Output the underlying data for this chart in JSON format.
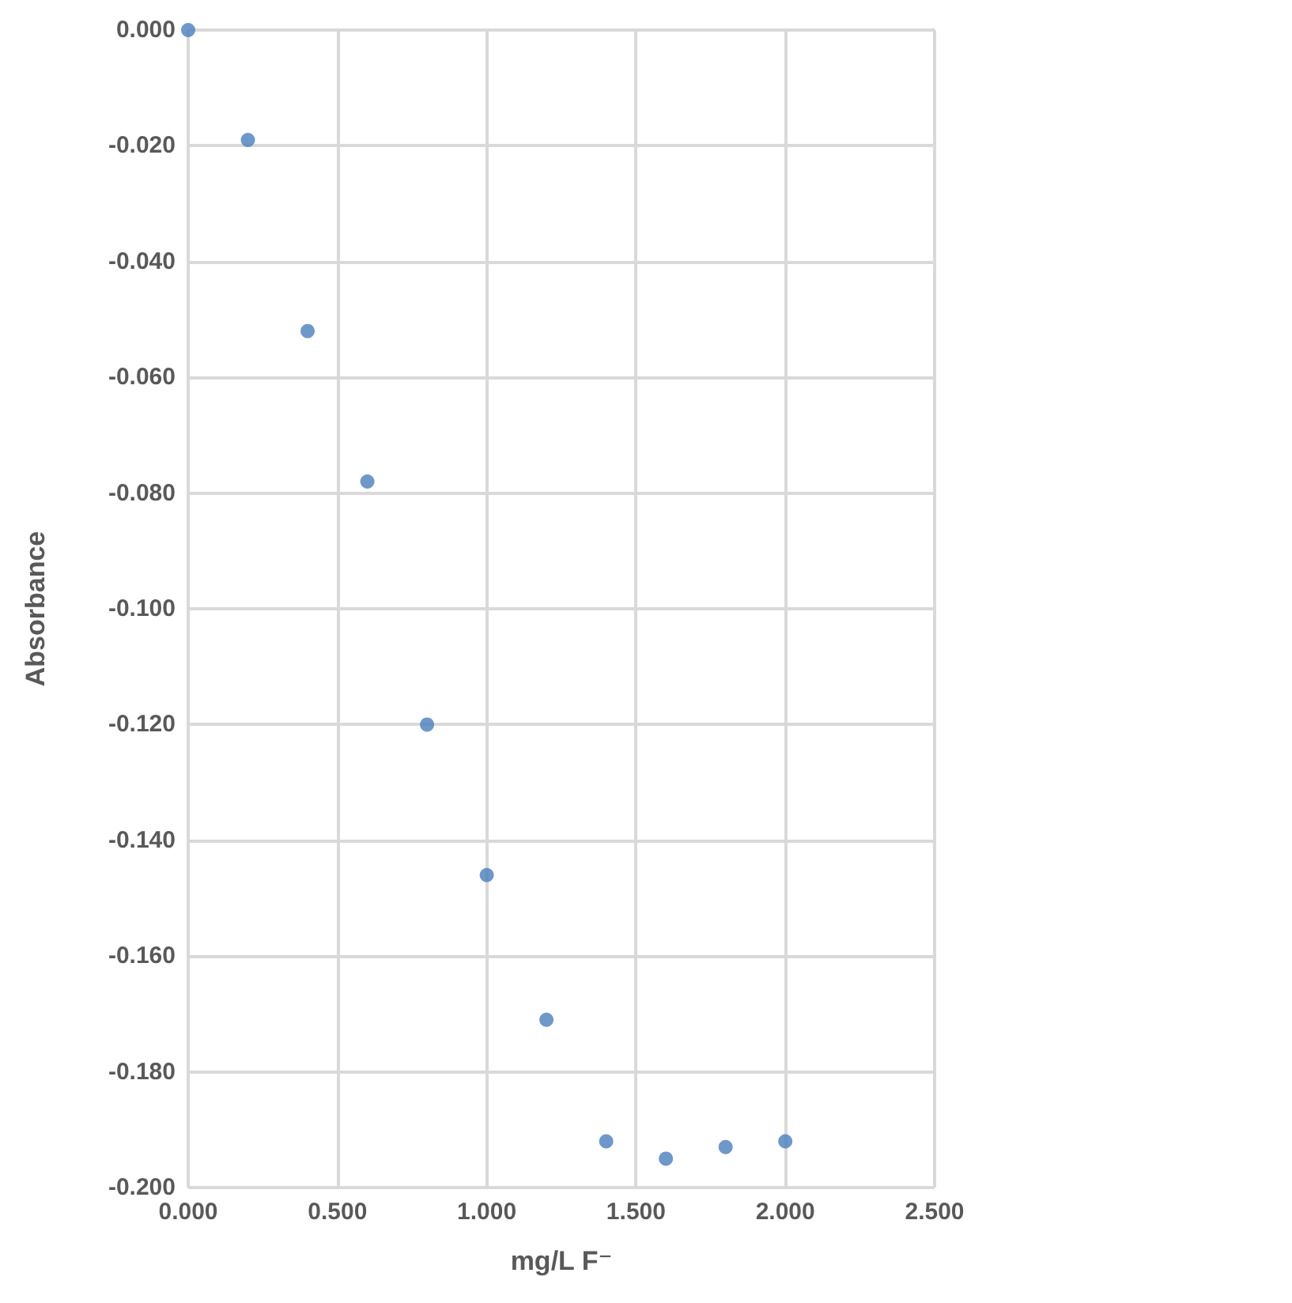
{
  "chart_data": {
    "type": "scatter",
    "xlabel": "mg/L F⁻",
    "ylabel": "Absorbance",
    "x": [
      0,
      0.2,
      0.4,
      0.6,
      0.8,
      1.0,
      1.2,
      1.4,
      1.6,
      1.8,
      2.0
    ],
    "series": [
      {
        "color": "#4a7ebb",
        "values": [
          0,
          -0.019,
          -0.052,
          -0.078,
          -0.12,
          -0.146,
          -0.171,
          -0.192,
          -0.195,
          -0.193,
          -0.192
        ]
      }
    ],
    "xlim": [
      0,
      2.5
    ],
    "xticks": [
      {
        "value": 0,
        "label": "0.000"
      },
      {
        "value": 0.5,
        "label": "0.500"
      },
      {
        "value": 1,
        "label": "1.000"
      },
      {
        "value": 1.5,
        "label": "1.500"
      },
      {
        "value": 2,
        "label": "2.000"
      },
      {
        "value": 2.5,
        "label": "2.500"
      }
    ],
    "ylim": [
      -0.2,
      0
    ],
    "yticks": [
      {
        "value": -0.2,
        "label": "-0.200"
      },
      {
        "value": -0.18,
        "label": "-0.180"
      },
      {
        "value": -0.16,
        "label": "-0.160"
      },
      {
        "value": -0.14,
        "label": "-0.140"
      },
      {
        "value": -0.12,
        "label": "-0.120"
      },
      {
        "value": -0.1,
        "label": "-0.100"
      },
      {
        "value": -0.08,
        "label": "-0.080"
      },
      {
        "value": -0.06,
        "label": "-0.060"
      },
      {
        "value": -0.04,
        "label": "-0.040"
      },
      {
        "value": -0.02,
        "label": "-0.020"
      },
      {
        "value": 0,
        "label": "0.000"
      }
    ],
    "grid": true,
    "marker": "circle"
  }
}
